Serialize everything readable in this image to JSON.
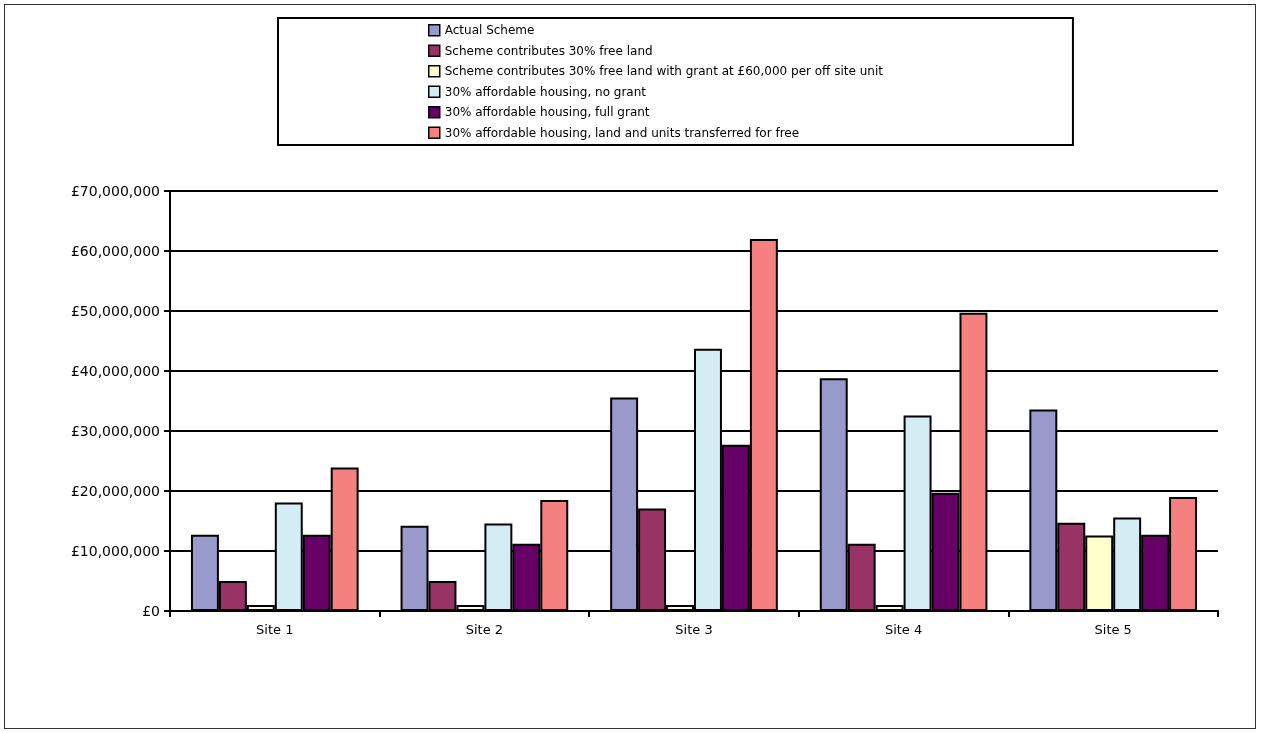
{
  "chart_data": {
    "type": "bar",
    "categories": [
      "Site 1",
      "Site 2",
      "Site 3",
      "Site 4",
      "Site 5"
    ],
    "series": [
      {
        "name": "Actual Scheme",
        "color": "#9999cc",
        "values": [
          12700000,
          14200000,
          35600000,
          38800000,
          33600000
        ]
      },
      {
        "name": "Scheme contributes 30% free land",
        "color": "#993366",
        "values": [
          5000000,
          5000000,
          17100000,
          11200000,
          14700000
        ]
      },
      {
        "name": "Scheme contributes 30% free land with grant at £60,000 per off site unit",
        "color": "#ffffcc",
        "values": [
          1000000,
          1000000,
          1000000,
          1000000,
          12600000
        ]
      },
      {
        "name": "30% affordable housing, no grant",
        "color": "#d4ecf3",
        "values": [
          18100000,
          14600000,
          43700000,
          32600000,
          15600000
        ]
      },
      {
        "name": "30% affordable housing, full grant",
        "color": "#660066",
        "values": [
          12700000,
          11200000,
          27700000,
          19700000,
          12700000
        ]
      },
      {
        "name": "30% affordable housing, land and units transferred for free",
        "color": "#f48080",
        "values": [
          23900000,
          18500000,
          62000000,
          49700000,
          19000000
        ]
      }
    ],
    "ylim": [
      0,
      70000000
    ],
    "yticks": [
      {
        "value": 0,
        "label": "£0"
      },
      {
        "value": 10000000,
        "label": "£10,000,000"
      },
      {
        "value": 20000000,
        "label": "£20,000,000"
      },
      {
        "value": 30000000,
        "label": "£30,000,000"
      },
      {
        "value": 40000000,
        "label": "£40,000,000"
      },
      {
        "value": 50000000,
        "label": "£50,000,000"
      },
      {
        "value": 60000000,
        "label": "£60,000,000"
      },
      {
        "value": 70000000,
        "label": "£70,000,000"
      }
    ],
    "grid": "y",
    "legend": "top"
  }
}
